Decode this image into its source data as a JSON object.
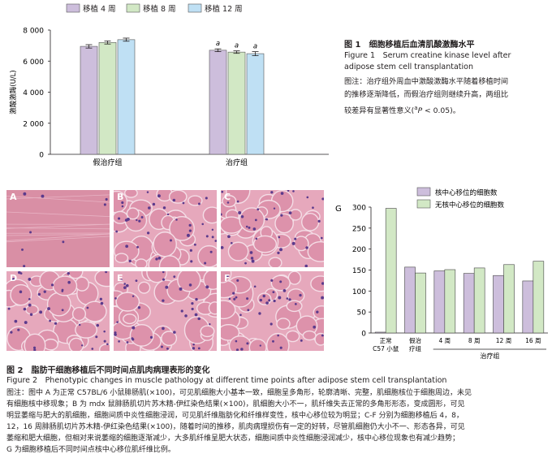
{
  "fig1": {
    "chart_data": {
      "type": "bar",
      "ylabel": "激酸激酶(U/L)",
      "ylim": [
        0,
        8000
      ],
      "yticks": [
        "0",
        "2 000",
        "4 000",
        "6 000",
        "8 000"
      ],
      "categories": [
        "假治疗组",
        "治疗组"
      ],
      "series": [
        {
          "name": "移植 4 周",
          "color": "#cdbedc",
          "values": [
            6950,
            6700
          ]
        },
        {
          "name": "移植 8 周",
          "color": "#d2e8c5",
          "values": [
            7200,
            6580
          ]
        },
        {
          "name": "移植 12 周",
          "color": "#bfe0f4",
          "values": [
            7380,
            6480
          ]
        }
      ],
      "significance_marks": [
        "a",
        "a",
        "a"
      ]
    },
    "caption_cn": "图 1　细胞移植后血清肌酸激酶水平",
    "caption_en_1": "Figure 1　Serum creatine kinase level after",
    "caption_en_2": "adipose stem cell transplantation",
    "note_1": "图注：治疗组外周血中激酸激酶水平随着移植时间",
    "note_2": "的推移逐渐降低，而假治疗组则继续升高，两组比",
    "note_3": "较差异有显著性意义(",
    "note_3_sup": "a",
    "note_3_p": "P",
    "note_3_end": " < 0.05)。"
  },
  "fig2": {
    "panel_labels": [
      "A",
      "B",
      "C",
      "D",
      "E",
      "F"
    ],
    "g_label": "G",
    "chart_data": {
      "type": "bar",
      "ylim": [
        0,
        300
      ],
      "yticks": [
        "0",
        "50",
        "100",
        "150",
        "200",
        "250",
        "300"
      ],
      "categories": [
        "正常 C57 小鼠",
        "假治疗组",
        "4 周",
        "8 周",
        "12 周",
        "16 周"
      ],
      "category_lines": [
        [
          "正常",
          "C57 小鼠"
        ],
        [
          "假治",
          "疗组"
        ],
        [
          "4 周"
        ],
        [
          "8 周"
        ],
        [
          "12 周"
        ],
        [
          "16 周"
        ]
      ],
      "group_label": "治疗组",
      "series": [
        {
          "name": "核中心移位的细胞数",
          "color": "#cdbedc",
          "values": [
            2,
            157,
            148,
            142,
            137,
            124
          ]
        },
        {
          "name": "无核中心移位的细胞数",
          "color": "#d2e8c5",
          "values": [
            297,
            143,
            151,
            155,
            163,
            171
          ]
        }
      ]
    },
    "caption_cn": "图 2　脂肪干细胞移植后不同时间点肌肉病理表形的变化",
    "caption_en": "Figure 2　Phenotypic changes in muscle pathology at different time points after adipose stem cell transplantation",
    "note_lines": [
      "图注：图中 A 为正常 C57BL/6 小鼠腓肠肌(×100)，可见肌细胞大小基本一致，细胞呈多角形，轮廓清晰、完整，肌细胞核位于细胞周边，未见",
      "有细胞核中移现象；B 为 mdx 鼠腓肠肌切片苏木精-伊红染色结果(×100)，肌细胞大小不一，肌纤维失去正常的多角形形态，变成圆形，可见",
      "明显萎缩与肥大的肌细胞，细胞间质中炎性细胞浸润，可见肌纤维脂肪化和纤维样变性，核中心移位较为明显；C-F 分别为细胞移植后 4，8，",
      "12，16 周腓肠肌切片苏木精-伊红染色结果(×100)，随着时间的推移，肌肉病理损伤有一定的好转，尽管肌细胞仍大小不一、形态各异，可见",
      "萎缩和肥大细胞，但相对来说萎缩的细胞逐渐减少，大多肌纤维呈肥大状态，细胞间质中炎性细胞浸润减少，核中心移位现象也有减少趋势；",
      "G 为细胞移植后不同时间点核中心移位肌纤维比例。"
    ]
  }
}
